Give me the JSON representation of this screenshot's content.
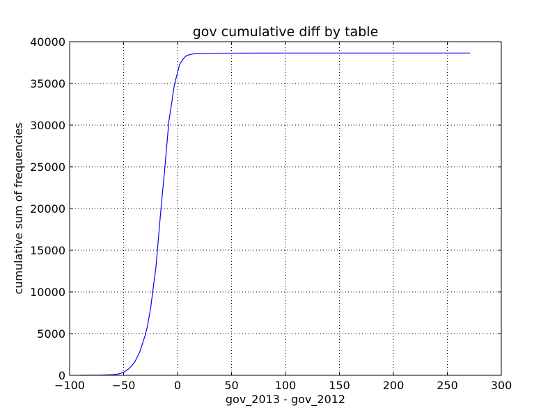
{
  "chart_data": {
    "type": "line",
    "title": "gov cumulative diff by table",
    "xlabel": "gov_2013 - gov_2012",
    "ylabel": "cumulative sum of frequencies",
    "xlim": [
      -100,
      300
    ],
    "ylim": [
      0,
      40000
    ],
    "grid": true,
    "x_ticks": [
      -100,
      -50,
      0,
      50,
      100,
      150,
      200,
      250,
      300
    ],
    "x_tick_labels": [
      "−100",
      "−50",
      "0",
      "50",
      "100",
      "150",
      "200",
      "250",
      "300"
    ],
    "y_ticks": [
      0,
      5000,
      10000,
      15000,
      20000,
      25000,
      30000,
      35000,
      40000
    ],
    "y_tick_labels": [
      "0",
      "5000",
      "10000",
      "15000",
      "20000",
      "25000",
      "30000",
      "35000",
      "40000"
    ],
    "series": [
      {
        "name": "cumulative",
        "color": "#0000ff",
        "x": [
          -90,
          -70,
          -60,
          -55,
          -50,
          -45,
          -40,
          -35,
          -30,
          -28,
          -25,
          -22,
          -20,
          -18,
          -15,
          -12,
          -10,
          -8,
          -5,
          -3,
          -1,
          0,
          2,
          5,
          8,
          10,
          15,
          20,
          30,
          50,
          100,
          150,
          200,
          250,
          271
        ],
        "y": [
          0,
          30,
          80,
          150,
          350,
          800,
          1500,
          2800,
          4800,
          5800,
          8000,
          11000,
          13000,
          16000,
          20500,
          24500,
          27500,
          30500,
          33000,
          34800,
          35800,
          36300,
          37300,
          37900,
          38300,
          38400,
          38550,
          38600,
          38620,
          38630,
          38640,
          38640,
          38640,
          38640,
          38640
        ]
      }
    ]
  }
}
